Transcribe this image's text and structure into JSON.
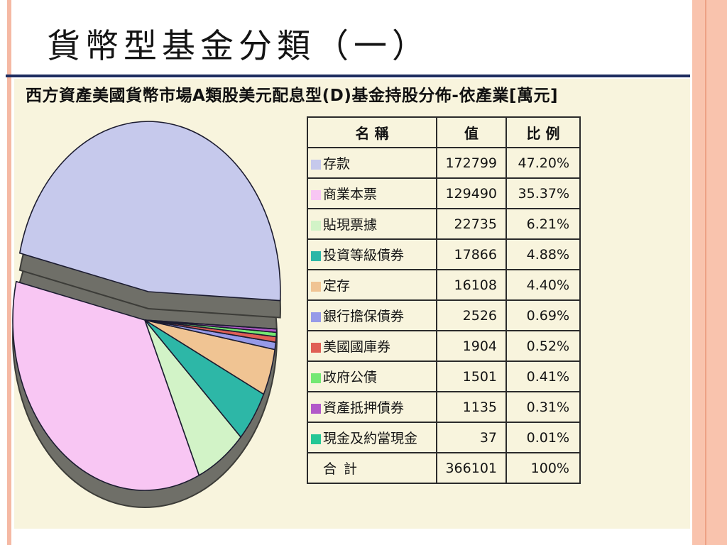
{
  "slide": {
    "title": "貨幣型基金分類（一）"
  },
  "chart": {
    "header": "西方資產美國貨幣市場A類股美元配息型(D)基金持股分佈-依產業[萬元]"
  },
  "chart_data": {
    "type": "pie",
    "style": "3d-exploded",
    "title": "西方資產美國貨幣市場A類股美元配息型(D)基金持股分佈-依產業[萬元]",
    "unit": "萬元",
    "legend_position": "right-table",
    "columns": [
      "名 稱",
      "值",
      "比 例"
    ],
    "slices": [
      {
        "label": "存款",
        "value": 172799,
        "ratio": "47.20%",
        "color": "#c6c9ec",
        "exploded": true
      },
      {
        "label": "商業本票",
        "value": 129490,
        "ratio": "35.37%",
        "color": "#f8c6f3",
        "exploded": false
      },
      {
        "label": "貼現票據",
        "value": 22735,
        "ratio": "6.21%",
        "color": "#d2f3c7",
        "exploded": false
      },
      {
        "label": "投資等級債券",
        "value": 17866,
        "ratio": "4.88%",
        "color": "#2db7a7",
        "exploded": false
      },
      {
        "label": "定存",
        "value": 16108,
        "ratio": "4.40%",
        "color": "#f0c493",
        "exploded": false
      },
      {
        "label": "銀行擔保債券",
        "value": 2526,
        "ratio": "0.69%",
        "color": "#969ae8",
        "exploded": false
      },
      {
        "label": "美國國庫券",
        "value": 1904,
        "ratio": "0.52%",
        "color": "#e05f55",
        "exploded": false
      },
      {
        "label": "政府公債",
        "value": 1501,
        "ratio": "0.41%",
        "color": "#74e873",
        "exploded": false
      },
      {
        "label": "資產抵押債券",
        "value": 1135,
        "ratio": "0.31%",
        "color": "#b259c9",
        "exploded": false
      },
      {
        "label": "現金及約當現金",
        "value": 37,
        "ratio": "0.01%",
        "color": "#25c795",
        "exploded": false
      }
    ],
    "total_row": {
      "label": "合 計",
      "value": "366101",
      "ratio": "100%"
    },
    "colors": {
      "depth_gray": "#6f6f68",
      "slice_outline": "#1c1c30",
      "panel_background": "#f8f4dd",
      "divider_navy": "#1d2c5f",
      "stripe_salmon": "#f5b9a4",
      "stripe_salmon_wide": "#f9c3ad",
      "stripe_salmon_line": "#eda184",
      "table_border": "#2b2b2b"
    }
  }
}
